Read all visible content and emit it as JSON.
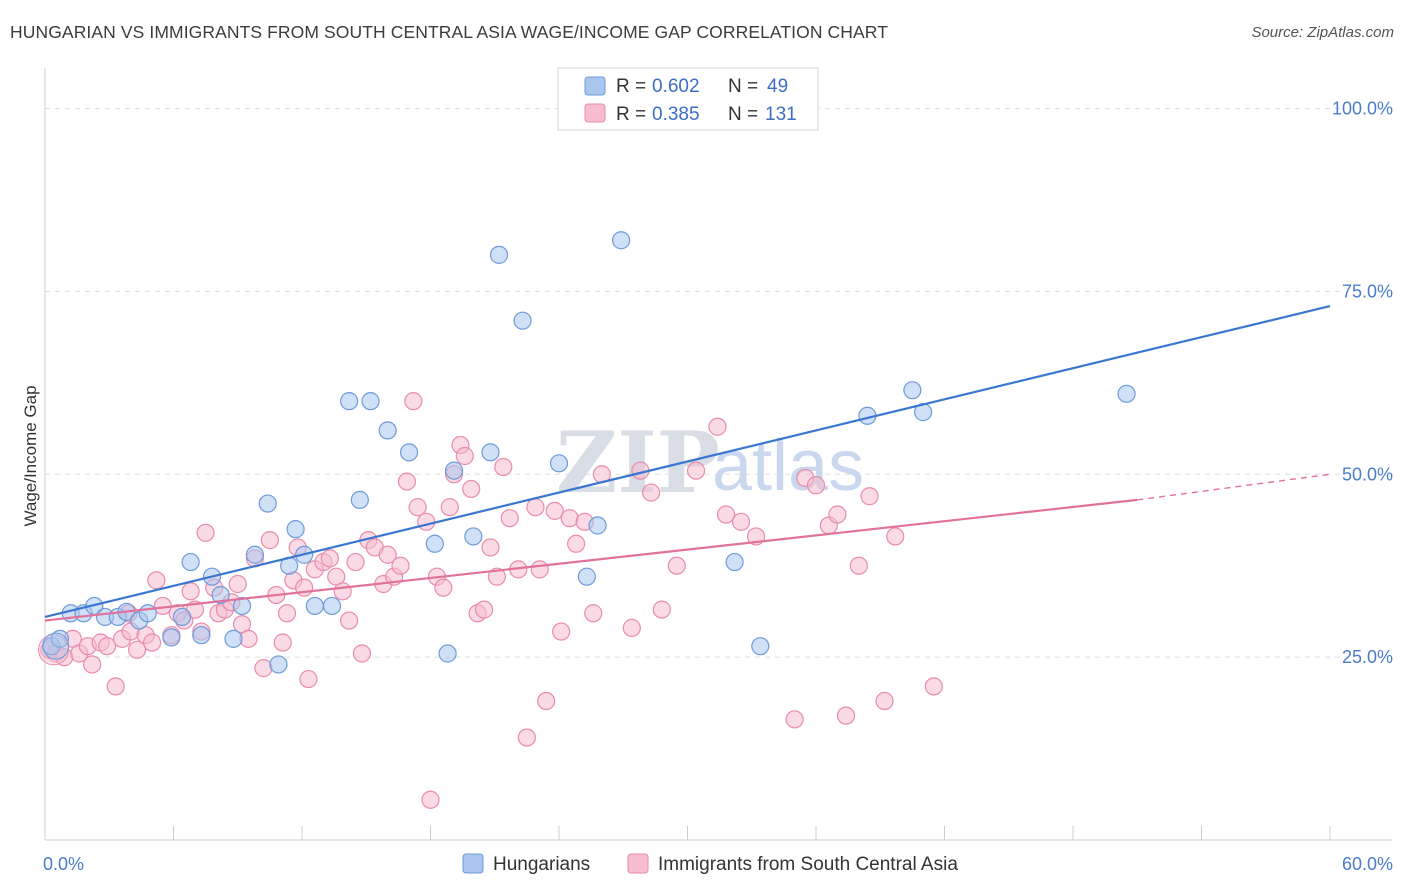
{
  "title": "HUNGARIAN VS IMMIGRANTS FROM SOUTH CENTRAL ASIA WAGE/INCOME GAP CORRELATION CHART",
  "source": "Source: ZipAtlas.com",
  "watermark": {
    "part1": "ZIP",
    "part2": "atlas"
  },
  "colors": {
    "blue_fill": "#a9c6ee",
    "blue_stroke": "#6f9bd8",
    "blue_line": "#3a77cf",
    "pink_fill": "#f6bcd0",
    "pink_stroke": "#e98cab",
    "pink_line": "#e0729c",
    "grid": "#dddddd",
    "tick_label": "#4a7cc9"
  },
  "legend": {
    "rows": [
      {
        "r_label": "R =",
        "r_value": "0.602",
        "n_label": "N =",
        "n_value": "49"
      },
      {
        "r_label": "R =",
        "r_value": "0.385",
        "n_label": "N =",
        "n_value": "131"
      }
    ]
  },
  "bottom_legend": [
    "Hungarians",
    "Immigrants from South Central Asia"
  ],
  "chart_data": {
    "type": "scatter",
    "xlabel": "",
    "ylabel": "Wage/Income Gap",
    "xlim": [
      0,
      60
    ],
    "ylim": [
      0,
      105
    ],
    "x_tick_labels": [
      {
        "value": 0,
        "label": "0.0%"
      },
      {
        "value": 60,
        "label": "60.0%"
      }
    ],
    "y_tick_labels": [
      {
        "value": 25,
        "label": "25.0%"
      },
      {
        "value": 50,
        "label": "50.0%"
      },
      {
        "value": 75,
        "label": "75.0%"
      },
      {
        "value": 100,
        "label": "100.0%"
      }
    ],
    "grid": "horizontal dashed",
    "series": [
      {
        "name": "Hungarians",
        "trend": {
          "x": [
            0,
            60
          ],
          "y": [
            30.5,
            73
          ]
        },
        "points": [
          [
            0.3,
            26.5
          ],
          [
            0.7,
            27.5
          ],
          [
            1.2,
            31
          ],
          [
            1.8,
            31
          ],
          [
            2.3,
            32
          ],
          [
            2.8,
            30.5
          ],
          [
            3.4,
            30.5
          ],
          [
            3.8,
            31.2
          ],
          [
            4.4,
            30
          ],
          [
            4.8,
            31
          ],
          [
            5.9,
            27.7
          ],
          [
            6.4,
            30.5
          ],
          [
            6.8,
            38
          ],
          [
            7.3,
            28
          ],
          [
            7.8,
            36
          ],
          [
            8.2,
            33.5
          ],
          [
            8.8,
            27.5
          ],
          [
            9.2,
            32
          ],
          [
            9.8,
            39
          ],
          [
            10.4,
            46
          ],
          [
            10.9,
            24
          ],
          [
            11.4,
            37.5
          ],
          [
            11.7,
            42.5
          ],
          [
            12.1,
            39
          ],
          [
            12.6,
            32
          ],
          [
            13.4,
            32
          ],
          [
            14.2,
            60
          ],
          [
            14.7,
            46.5
          ],
          [
            15.2,
            60
          ],
          [
            16.0,
            56
          ],
          [
            17.0,
            53
          ],
          [
            18.2,
            40.5
          ],
          [
            18.8,
            25.5
          ],
          [
            19.1,
            50.5
          ],
          [
            20.0,
            41.5
          ],
          [
            20.8,
            53
          ],
          [
            21.2,
            80
          ],
          [
            22.3,
            71
          ],
          [
            24.0,
            51.5
          ],
          [
            25.3,
            36
          ],
          [
            25.8,
            43
          ],
          [
            26.9,
            82
          ],
          [
            32.2,
            38
          ],
          [
            33.4,
            26.5
          ],
          [
            38.4,
            58
          ],
          [
            40.5,
            61.5
          ],
          [
            41.0,
            58.5
          ],
          [
            50.5,
            61
          ]
        ]
      },
      {
        "name": "Immigrants from South Central Asia",
        "trend": {
          "x": [
            0,
            51
          ],
          "y": [
            30,
            46.5
          ]
        },
        "trend_dashed": {
          "x": [
            51,
            60
          ],
          "y": [
            46.5,
            50
          ]
        },
        "points": [
          [
            0.2,
            26
          ],
          [
            0.5,
            25.5
          ],
          [
            0.9,
            25
          ],
          [
            1.3,
            27.5
          ],
          [
            1.6,
            25.5
          ],
          [
            2.0,
            26.5
          ],
          [
            2.2,
            24
          ],
          [
            2.6,
            27
          ],
          [
            2.9,
            26.5
          ],
          [
            3.3,
            21
          ],
          [
            3.6,
            27.5
          ],
          [
            3.9,
            31
          ],
          [
            4.0,
            28.5
          ],
          [
            4.3,
            26
          ],
          [
            4.7,
            28
          ],
          [
            5.0,
            27
          ],
          [
            5.2,
            35.5
          ],
          [
            5.5,
            32
          ],
          [
            5.9,
            28
          ],
          [
            6.2,
            31
          ],
          [
            6.5,
            30
          ],
          [
            6.8,
            34
          ],
          [
            7.0,
            31.5
          ],
          [
            7.3,
            28.5
          ],
          [
            7.5,
            42
          ],
          [
            7.9,
            34.5
          ],
          [
            8.1,
            31
          ],
          [
            8.4,
            31.5
          ],
          [
            8.7,
            32.5
          ],
          [
            9.0,
            35
          ],
          [
            9.2,
            29.5
          ],
          [
            9.5,
            27.5
          ],
          [
            9.8,
            38.5
          ],
          [
            10.2,
            23.5
          ],
          [
            10.5,
            41
          ],
          [
            10.8,
            33.5
          ],
          [
            11.1,
            27
          ],
          [
            11.3,
            31
          ],
          [
            11.6,
            35.5
          ],
          [
            11.8,
            40
          ],
          [
            12.1,
            34.5
          ],
          [
            12.3,
            22
          ],
          [
            12.6,
            37
          ],
          [
            13.0,
            38
          ],
          [
            13.3,
            38.5
          ],
          [
            13.6,
            36
          ],
          [
            13.9,
            34
          ],
          [
            14.2,
            30
          ],
          [
            14.5,
            38
          ],
          [
            14.8,
            25.5
          ],
          [
            15.1,
            41
          ],
          [
            15.4,
            40
          ],
          [
            15.8,
            35
          ],
          [
            16.0,
            39
          ],
          [
            16.3,
            36
          ],
          [
            16.6,
            37.5
          ],
          [
            16.9,
            49
          ],
          [
            17.2,
            60
          ],
          [
            17.4,
            45.5
          ],
          [
            17.8,
            43.5
          ],
          [
            18.0,
            5.5
          ],
          [
            18.3,
            36
          ],
          [
            18.6,
            34.5
          ],
          [
            18.9,
            45.5
          ],
          [
            19.1,
            50
          ],
          [
            19.4,
            54
          ],
          [
            19.6,
            52.5
          ],
          [
            19.9,
            48
          ],
          [
            20.2,
            31
          ],
          [
            20.5,
            31.5
          ],
          [
            20.8,
            40
          ],
          [
            21.1,
            36
          ],
          [
            21.4,
            51
          ],
          [
            21.7,
            44
          ],
          [
            22.1,
            37
          ],
          [
            22.5,
            14
          ],
          [
            22.9,
            45.5
          ],
          [
            23.1,
            37
          ],
          [
            23.4,
            19
          ],
          [
            23.8,
            45
          ],
          [
            24.1,
            28.5
          ],
          [
            24.5,
            44
          ],
          [
            24.8,
            40.5
          ],
          [
            25.2,
            43.5
          ],
          [
            25.6,
            31
          ],
          [
            26.0,
            50
          ],
          [
            27.4,
            29
          ],
          [
            27.8,
            50.5
          ],
          [
            28.3,
            47.5
          ],
          [
            28.8,
            31.5
          ],
          [
            29.5,
            37.5
          ],
          [
            30.4,
            50.5
          ],
          [
            31.4,
            56.5
          ],
          [
            31.8,
            44.5
          ],
          [
            32.5,
            43.5
          ],
          [
            33.2,
            41.5
          ],
          [
            35.0,
            16.5
          ],
          [
            35.5,
            49.5
          ],
          [
            36.0,
            48.5
          ],
          [
            36.6,
            43
          ],
          [
            37.0,
            44.5
          ],
          [
            37.4,
            17
          ],
          [
            38.0,
            37.5
          ],
          [
            38.5,
            47
          ],
          [
            39.2,
            19
          ],
          [
            39.7,
            41.5
          ],
          [
            41.5,
            21
          ]
        ]
      }
    ]
  }
}
